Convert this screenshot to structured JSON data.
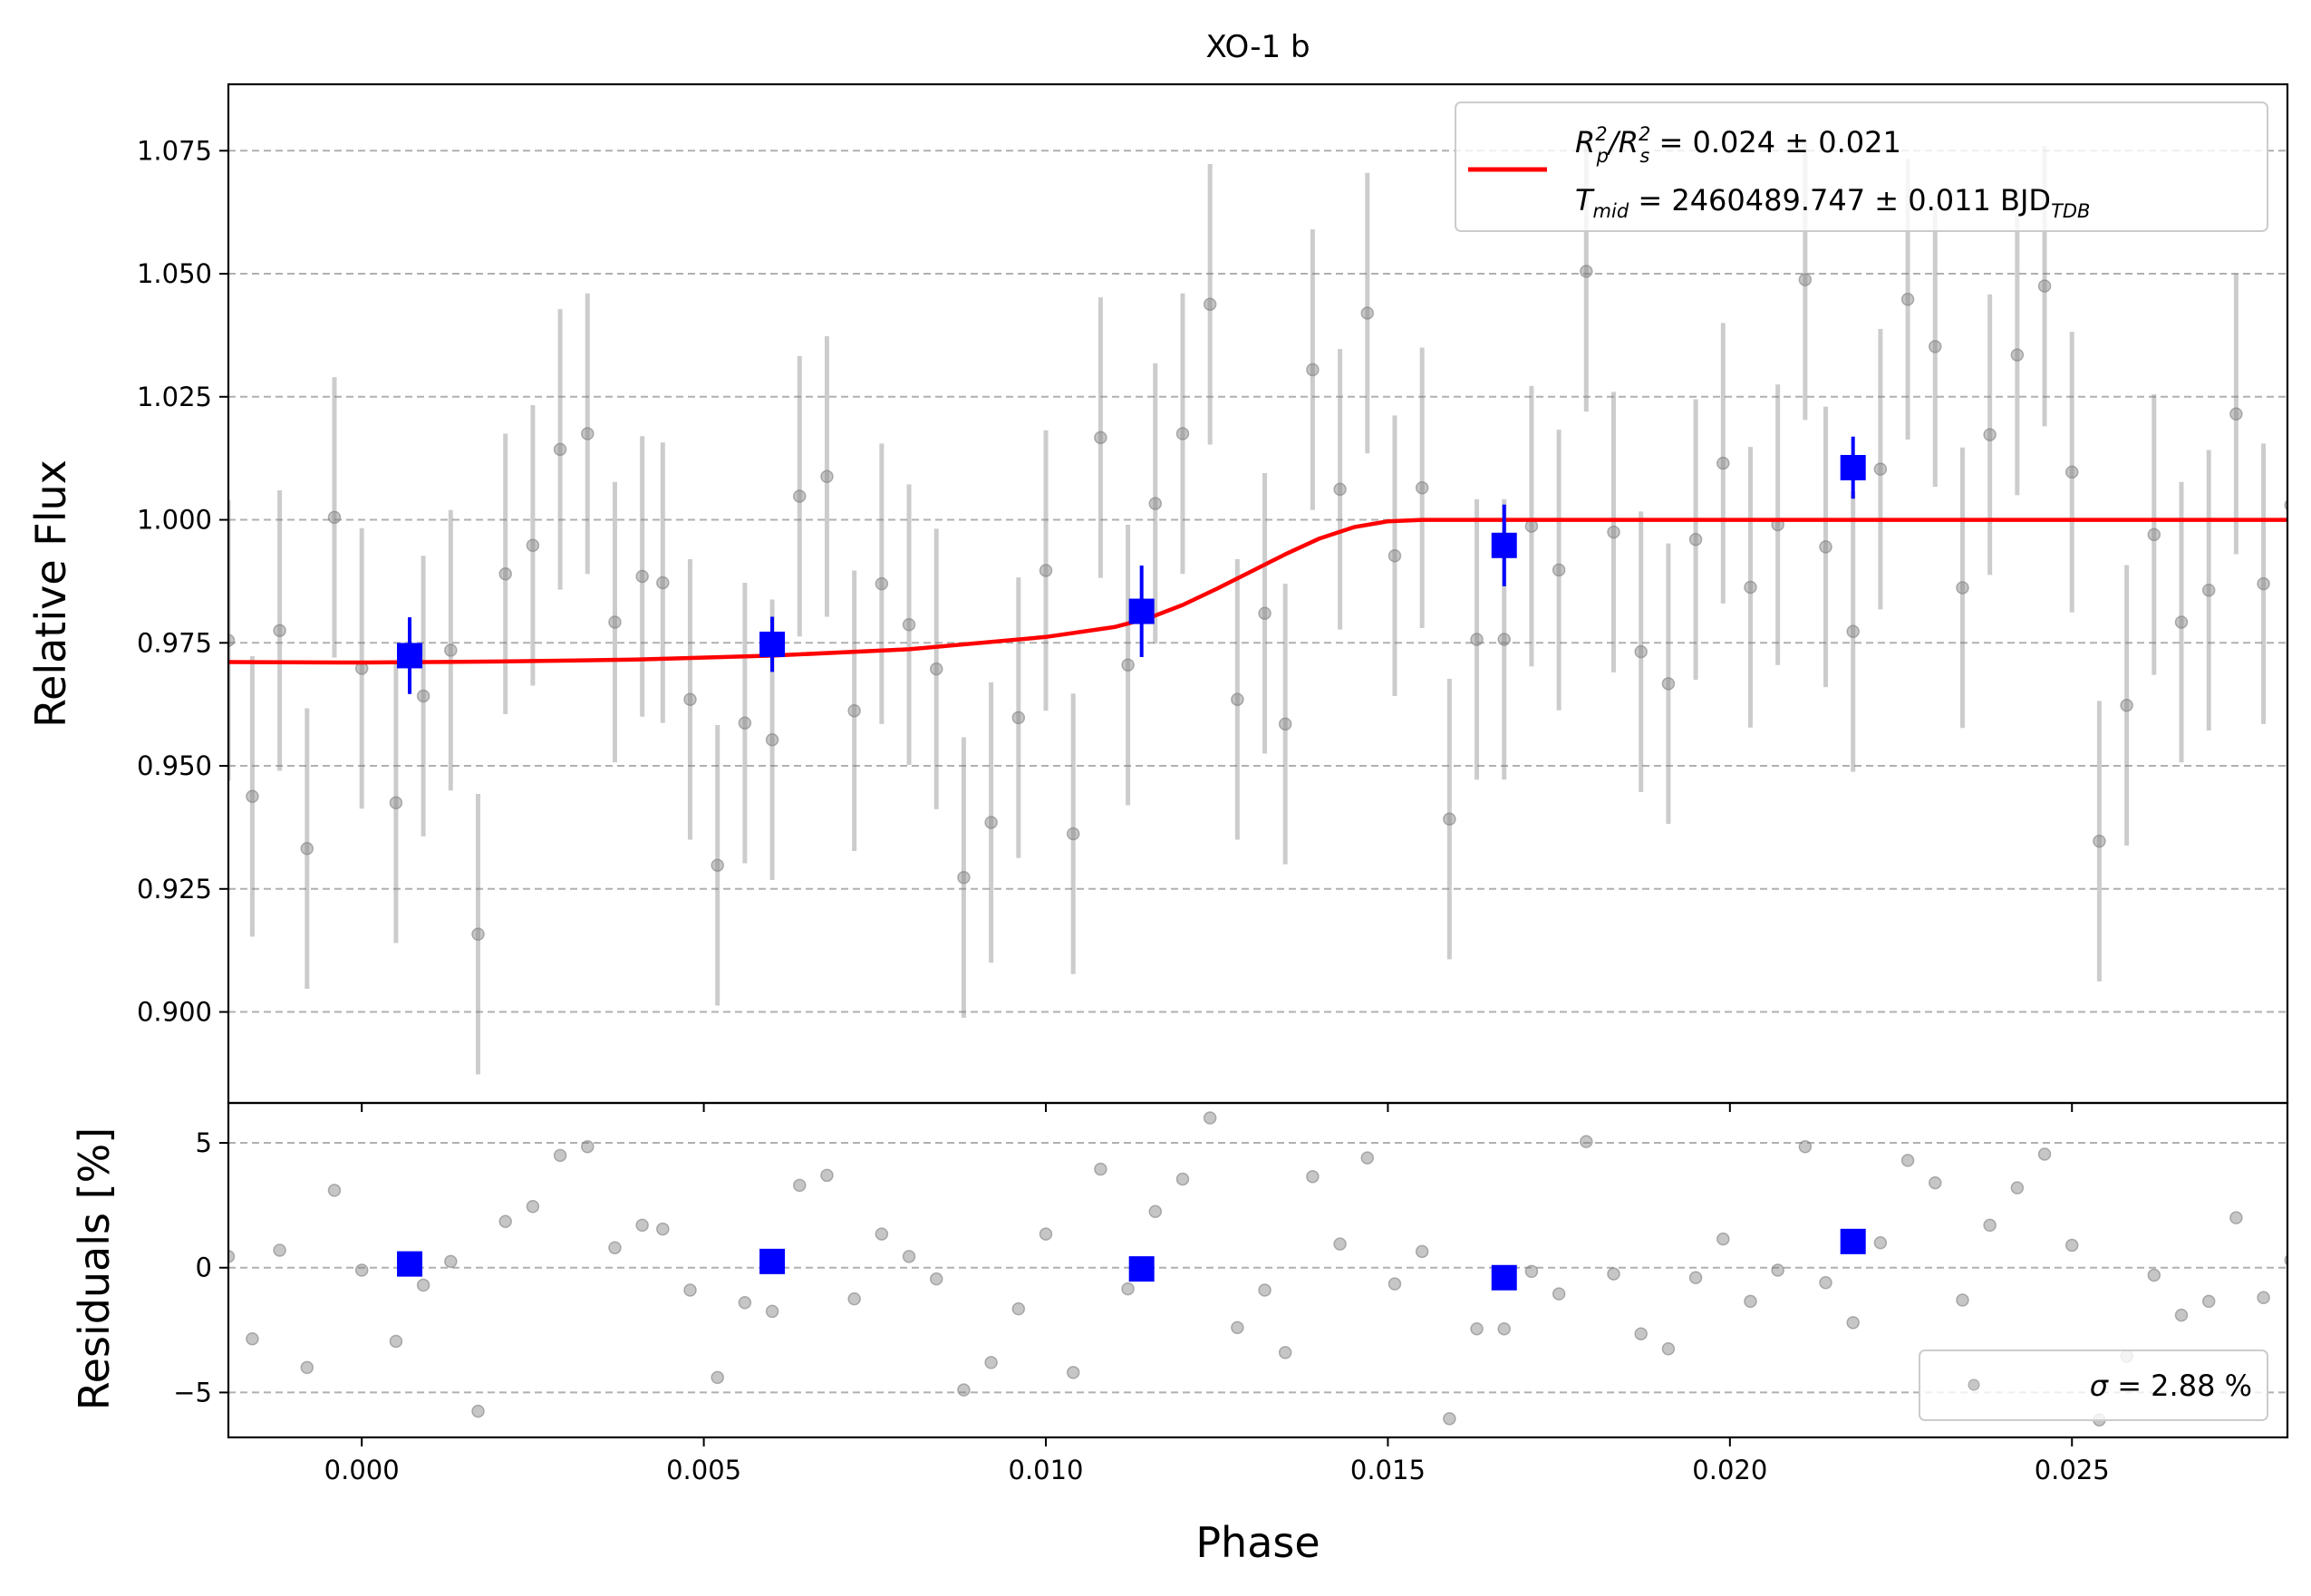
{
  "chart_data": [
    {
      "panel": "lightcurve",
      "type": "scatter",
      "title": "XO-1 b",
      "ylabel": "Relative Flux",
      "xlim": [
        -0.00195,
        0.02815
      ],
      "ylim": [
        0.8815,
        1.0885
      ],
      "grid": "horizontal dashed",
      "x_ticks": [
        "0.000",
        "0.005",
        "0.010",
        "0.015",
        "0.020",
        "0.025"
      ],
      "y_ticks": [
        "0.900",
        "0.925",
        "0.950",
        "0.975",
        "1.000",
        "1.025",
        "1.050",
        "1.075"
      ],
      "legend": {
        "placement": "top-right",
        "line1_lhs_pre": "R",
        "line1_lhs_sub1": "p",
        "line1_lhs_sup1": "2",
        "line1_lhs_mid": "/R",
        "line1_lhs_sub2": "s",
        "line1_lhs_sup2": "2",
        "line1_rhs": " = 0.024 ± 0.021",
        "line2_lhs_pre": "T",
        "line2_lhs_sub": "mid",
        "line2_rhs": " = 2460489.747 ± 0.011 BJD",
        "line2_unit_sub": "TDB",
        "line_color": "#ff0000"
      },
      "series": [
        {
          "kind": "raw",
          "color": "#808080",
          "yerr": 0.0285,
          "x": [
            -0.00195,
            -0.0016,
            -0.0012,
            -0.0008,
            -0.0004,
            0.0,
            0.0005,
            0.0009,
            0.0013,
            0.0017,
            0.0021,
            0.0025,
            0.0029,
            0.0033,
            0.0037,
            0.0041,
            0.0044,
            0.0048,
            0.0052,
            0.0056,
            0.006,
            0.0064,
            0.0068,
            0.0072,
            0.0076,
            0.008,
            0.0084,
            0.0088,
            0.0092,
            0.0096,
            0.01,
            0.0104,
            0.0108,
            0.0112,
            0.0116,
            0.012,
            0.0124,
            0.0128,
            0.0132,
            0.0135,
            0.0139,
            0.0143,
            0.0147,
            0.0151,
            0.0155,
            0.0159,
            0.0163,
            0.0167,
            0.0171,
            0.0175,
            0.0179,
            0.0183,
            0.0187,
            0.0191,
            0.0195,
            0.0199,
            0.0203,
            0.0207,
            0.0211,
            0.0214,
            0.0218,
            0.0222,
            0.0226,
            0.023,
            0.0234,
            0.0238,
            0.0242,
            0.0246,
            0.025,
            0.0254,
            0.0258,
            0.0262,
            0.0266,
            0.027,
            0.0274,
            0.0278,
            0.0282
          ],
          "y": [
            0.9755,
            0.9438,
            0.9775,
            0.9332,
            1.0005,
            0.9698,
            0.9425,
            0.9642,
            0.9735,
            0.9158,
            0.989,
            0.9948,
            1.0143,
            1.0175,
            0.9792,
            0.9885,
            0.9872,
            0.9635,
            0.9298,
            0.9587,
            0.9553,
            1.0048,
            1.0088,
            0.9612,
            0.987,
            0.9787,
            0.9697,
            0.9273,
            0.9385,
            0.9598,
            0.9897,
            0.9362,
            1.0167,
            0.9705,
            1.0033,
            1.0175,
            1.0438,
            0.9635,
            0.981,
            0.9585,
            1.0305,
            1.0062,
            1.042,
            0.9927,
            1.0065,
            0.9392,
            0.9757,
            0.9757,
            0.9987,
            0.9898,
            1.0505,
            0.9975,
            0.9732,
            0.9667,
            0.996,
            1.0115,
            0.9863,
            0.999,
            1.0488,
            0.9945,
            0.9773,
            1.0103,
            1.0448,
            1.0352,
            0.9862,
            1.0173,
            1.0335,
            1.0475,
            1.0097,
            0.9347,
            0.9623,
            0.997,
            0.9792,
            0.9857,
            1.0215,
            0.987,
            1.003
          ]
        },
        {
          "kind": "binned",
          "color": "#0000ff",
          "x": [
            0.0007,
            0.006,
            0.0114,
            0.0167,
            0.0218
          ],
          "y": [
            0.9724,
            0.9747,
            0.9814,
            0.9948,
            1.0106
          ],
          "yerr": [
            0.0078,
            0.0056,
            0.0093,
            0.0083,
            0.0063
          ]
        },
        {
          "kind": "model",
          "color": "#ff0000",
          "x": [
            -0.00195,
            0.0,
            0.002,
            0.004,
            0.006,
            0.008,
            0.01,
            0.011,
            0.0115,
            0.012,
            0.0125,
            0.013,
            0.0135,
            0.014,
            0.0145,
            0.015,
            0.0155,
            0.02,
            0.02815
          ],
          "y": [
            0.9711,
            0.971,
            0.9712,
            0.9716,
            0.9724,
            0.9737,
            0.9762,
            0.9782,
            0.98,
            0.9827,
            0.986,
            0.9895,
            0.993,
            0.9962,
            0.9985,
            0.9997,
            1.0,
            1.0,
            1.0
          ]
        }
      ]
    },
    {
      "panel": "residuals",
      "type": "scatter",
      "xlabel": "Phase",
      "ylabel": "Residuals [%]",
      "xlim": [
        -0.00195,
        0.02815
      ],
      "ylim": [
        -6.8,
        6.6
      ],
      "grid": "horizontal dashed",
      "x_ticks": [
        "0.000",
        "0.005",
        "0.010",
        "0.015",
        "0.020",
        "0.025"
      ],
      "y_ticks": [
        "−5",
        "0",
        "5"
      ],
      "legend": {
        "placement": "bottom-right",
        "sigma_symbol": "σ",
        "sigma_text": " = 2.88 %"
      },
      "series": [
        {
          "kind": "raw",
          "color": "#808080",
          "x": [
            -0.00195,
            -0.0016,
            -0.0012,
            -0.0008,
            -0.0004,
            0.0,
            0.0005,
            0.0009,
            0.0013,
            0.0017,
            0.0021,
            0.0025,
            0.0029,
            0.0033,
            0.0037,
            0.0041,
            0.0044,
            0.0048,
            0.0052,
            0.0056,
            0.006,
            0.0064,
            0.0068,
            0.0072,
            0.0076,
            0.008,
            0.0084,
            0.0088,
            0.0092,
            0.0096,
            0.01,
            0.0104,
            0.0108,
            0.0112,
            0.0116,
            0.012,
            0.0124,
            0.0128,
            0.0132,
            0.0135,
            0.0139,
            0.0143,
            0.0147,
            0.0151,
            0.0155,
            0.0159,
            0.0163,
            0.0167,
            0.0171,
            0.0175,
            0.0179,
            0.0183,
            0.0187,
            0.0191,
            0.0195,
            0.0199,
            0.0203,
            0.0207,
            0.0211,
            0.0214,
            0.0218,
            0.0222,
            0.0226,
            0.023,
            0.0234,
            0.0238,
            0.0242,
            0.0246,
            0.025,
            0.0254,
            0.0258,
            0.0262,
            0.0266,
            0.027,
            0.0274,
            0.0278,
            0.0282
          ],
          "y": [
            0.45,
            -2.85,
            0.7,
            -4.0,
            3.1,
            -0.1,
            -2.95,
            -0.7,
            0.25,
            -5.75,
            1.85,
            2.45,
            4.5,
            4.85,
            0.8,
            1.7,
            1.55,
            -0.9,
            -4.4,
            -1.4,
            -1.75,
            3.3,
            3.7,
            -1.25,
            1.35,
            0.45,
            -0.45,
            -4.9,
            -3.8,
            -1.65,
            1.35,
            -4.2,
            3.95,
            -0.85,
            2.25,
            3.55,
            6.0,
            -2.4,
            -0.9,
            -3.4,
            3.65,
            0.95,
            4.4,
            -0.65,
            0.65,
            -6.05,
            -2.45,
            -2.45,
            -0.15,
            -1.05,
            5.05,
            -0.25,
            -2.65,
            -3.25,
            -0.4,
            1.15,
            -1.35,
            -0.1,
            4.85,
            -0.6,
            -2.2,
            1.0,
            4.3,
            3.4,
            -1.3,
            1.7,
            3.2,
            4.55,
            0.9,
            -6.1,
            -3.55,
            -0.3,
            -1.9,
            -1.35,
            2.0,
            -1.2,
            0.3
          ]
        },
        {
          "kind": "binned",
          "color": "#0000ff",
          "x": [
            0.0007,
            0.006,
            0.0114,
            0.0167,
            0.0218
          ],
          "y": [
            0.15,
            0.25,
            -0.05,
            -0.4,
            1.05
          ]
        }
      ]
    }
  ]
}
